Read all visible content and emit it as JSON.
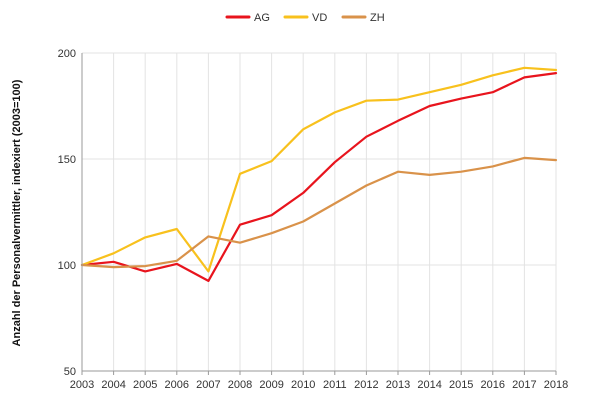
{
  "chart_data": {
    "type": "line",
    "ylabel": "Anzahl der Personalvermittler, indexiert (2003=100)",
    "xlabel": "",
    "x": [
      "2003",
      "2004",
      "2005",
      "2006",
      "2007",
      "2008",
      "2009",
      "2010",
      "2011",
      "2012",
      "2013",
      "2014",
      "2015",
      "2016",
      "2017",
      "2018"
    ],
    "ylim": [
      50,
      200
    ],
    "yticks": [
      "50",
      "100",
      "150",
      "200"
    ],
    "grid": "horizontal",
    "legend_position": "top-center",
    "series": [
      {
        "name": "AG",
        "color": "#e8141d",
        "values": [
          100,
          101.5,
          97,
          100.5,
          92.5,
          119,
          123.5,
          134,
          148.5,
          160.5,
          168,
          175,
          178.5,
          181.5,
          188.5,
          190.5
        ]
      },
      {
        "name": "VD",
        "color": "#f8c11d",
        "values": [
          100,
          105.5,
          113,
          117,
          97,
          143,
          149,
          164,
          172,
          177.5,
          178,
          181.5,
          185,
          189.5,
          193,
          192
        ]
      },
      {
        "name": "ZH",
        "color": "#d9924a",
        "values": [
          100,
          99,
          99.5,
          102,
          113.5,
          110.5,
          115,
          120.5,
          129,
          137.5,
          144,
          142.5,
          144,
          146.5,
          150.5,
          149.5
        ]
      }
    ]
  }
}
